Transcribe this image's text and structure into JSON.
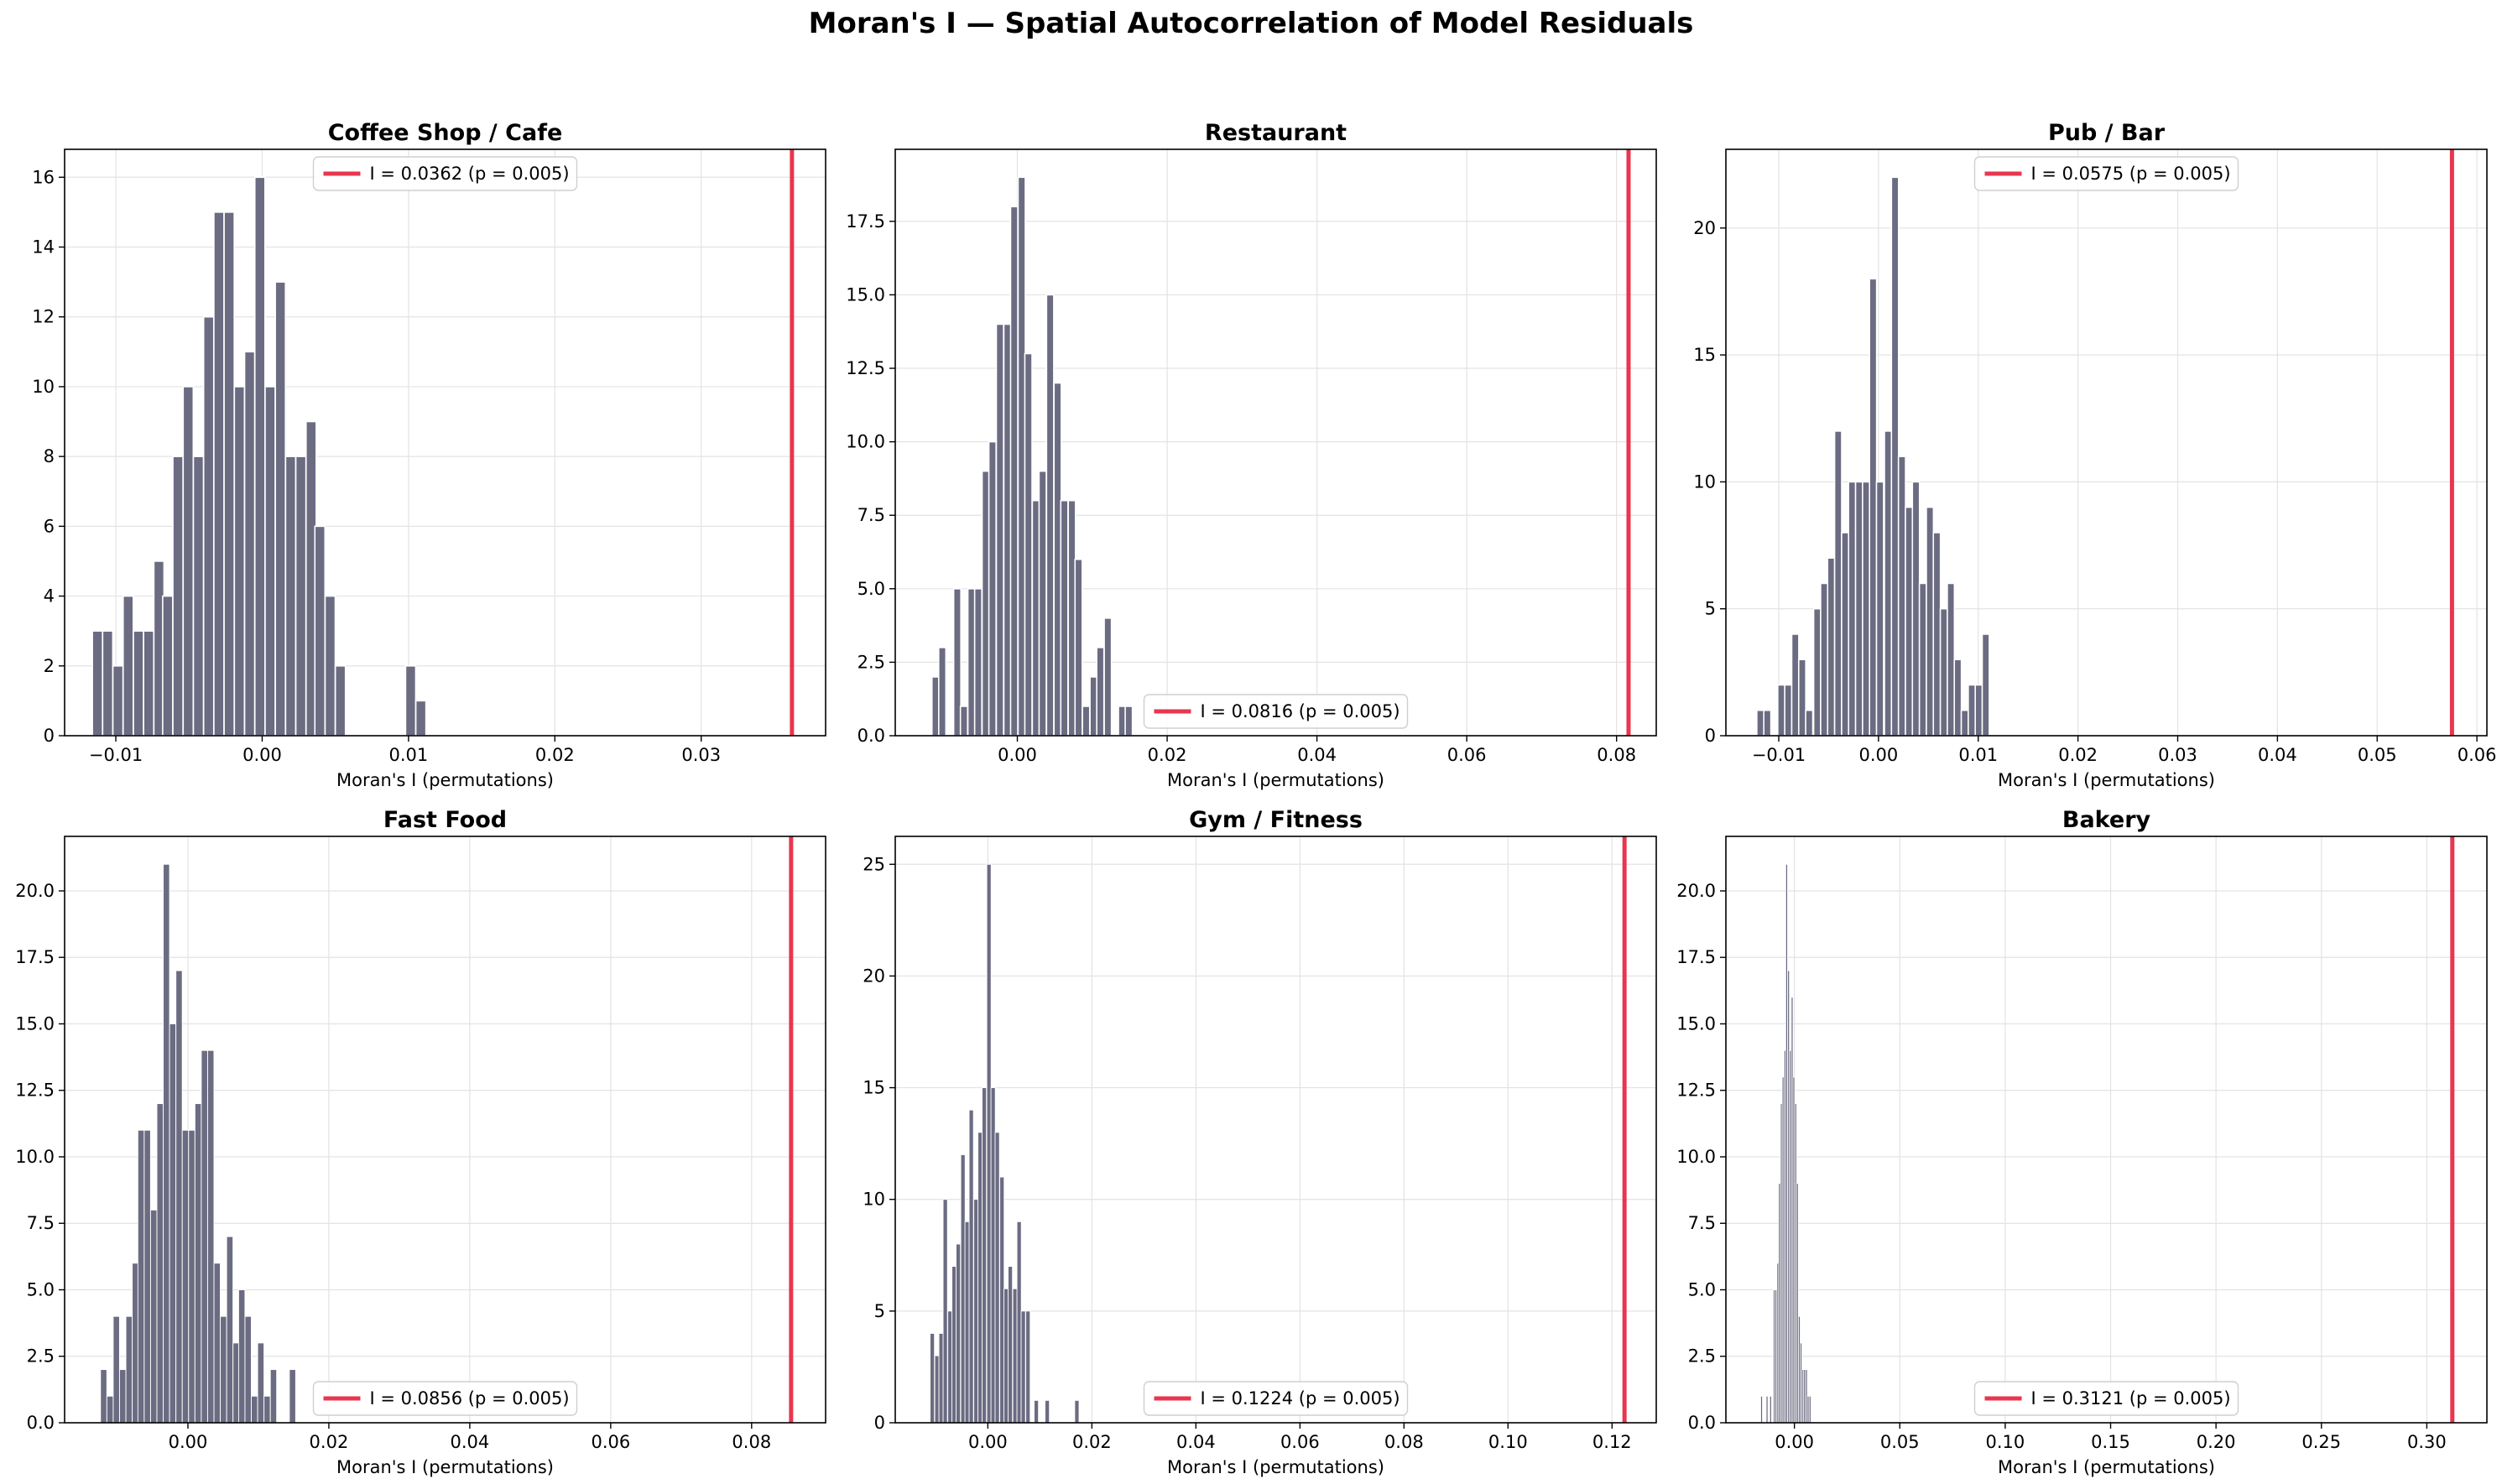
{
  "figure": {
    "title": "Moran's I — Spatial Autocorrelation of Model Residuals",
    "bar_color": "#6b6b82",
    "line_color": "#e8364f"
  },
  "chart_data": [
    {
      "type": "bar",
      "title": "Coffee Shop / Cafe",
      "xlabel": "Moran's I (permutations)",
      "ylabel": "",
      "xlim": [
        -0.0135,
        0.0385
      ],
      "ylim": [
        0,
        16.8
      ],
      "xticks": [
        -0.01,
        0.0,
        0.01,
        0.02,
        0.03
      ],
      "xtick_labels": [
        "−0.01",
        "0.00",
        "0.01",
        "0.02",
        "0.03"
      ],
      "yticks": [
        0,
        2,
        4,
        6,
        8,
        10,
        12,
        14,
        16
      ],
      "ytick_labels": [
        "0",
        "2",
        "4",
        "6",
        "8",
        "10",
        "12",
        "14",
        "16"
      ],
      "bin_width": 0.00069,
      "bins": [
        -0.0116,
        -0.0109,
        -0.0102,
        -0.0095,
        -0.0088,
        -0.0081,
        -0.0074,
        -0.0068,
        -0.0061,
        -0.0054,
        -0.0047,
        -0.004,
        -0.0033,
        -0.0026,
        -0.0019,
        -0.0012,
        -0.0005,
        0.0002,
        0.0009,
        0.0016,
        0.0023,
        0.003,
        0.0036,
        0.0043,
        0.005,
        0.0057,
        0.0064,
        0.0071,
        0.0078,
        0.0085,
        0.0092,
        0.0098,
        0.0105
      ],
      "counts": [
        3,
        3,
        2,
        4,
        3,
        3,
        5,
        4,
        8,
        10,
        8,
        12,
        15,
        15,
        10,
        11,
        16,
        10,
        13,
        8,
        8,
        9,
        6,
        4,
        2,
        0,
        0,
        0,
        0,
        0,
        0,
        2,
        1
      ],
      "observed_I": 0.0362,
      "legend": "I = 0.0362 (p = 0.005)",
      "legend_loc": "upper center",
      "grid": true
    },
    {
      "type": "bar",
      "title": "Restaurant",
      "xlabel": "Moran's I (permutations)",
      "ylabel": "",
      "xlim": [
        -0.0163,
        0.0853
      ],
      "ylim": [
        0,
        19.95
      ],
      "xticks": [
        0.0,
        0.02,
        0.04,
        0.06,
        0.08
      ],
      "xtick_labels": [
        "0.00",
        "0.02",
        "0.04",
        "0.06",
        "0.08"
      ],
      "yticks": [
        0,
        2.5,
        5,
        7.5,
        10,
        12.5,
        15,
        17.5
      ],
      "ytick_labels": [
        "0.0",
        "2.5",
        "5.0",
        "7.5",
        "10.0",
        "12.5",
        "15.0",
        "17.5"
      ],
      "bin_width": 0.00096,
      "bins": [
        -0.0114,
        -0.0105,
        -0.0095,
        -0.0085,
        -0.0076,
        -0.0066,
        -0.0057,
        -0.0047,
        -0.0038,
        -0.0028,
        -0.0018,
        -0.0009,
        0.0001,
        0.001,
        0.002,
        0.0029,
        0.0039,
        0.0049,
        0.0058,
        0.0068,
        0.0077,
        0.0087,
        0.0097,
        0.0106,
        0.0116,
        0.0125,
        0.0135
      ],
      "counts": [
        2,
        3,
        0,
        5,
        1,
        5,
        5,
        9,
        10,
        14,
        14,
        18,
        19,
        13,
        8,
        9,
        15,
        12,
        8,
        8,
        6,
        1,
        2,
        3,
        4,
        0,
        1
      ],
      "extra_bins": [
        {
          "x": 0.0144,
          "count": 1
        }
      ],
      "observed_I": 0.0816,
      "legend": "I = 0.0816 (p = 0.005)",
      "legend_loc": "lower center",
      "grid": true
    },
    {
      "type": "bar",
      "title": "Pub / Bar",
      "xlabel": "Moran's I (permutations)",
      "ylabel": "",
      "xlim": [
        -0.0153,
        0.061
      ],
      "ylim": [
        0,
        23.1
      ],
      "xticks": [
        -0.01,
        0.0,
        0.01,
        0.02,
        0.03,
        0.04,
        0.05,
        0.06
      ],
      "xtick_labels": [
        "−0.01",
        "0.00",
        "0.01",
        "0.02",
        "0.03",
        "0.04",
        "0.05",
        "0.06"
      ],
      "yticks": [
        0,
        5,
        10,
        15,
        20
      ],
      "ytick_labels": [
        "0",
        "5",
        "10",
        "15",
        "20"
      ],
      "bin_width": 0.00071,
      "bins": [
        -0.0122,
        -0.0115,
        -0.0108,
        -0.0101,
        -0.0094,
        -0.0087,
        -0.008,
        -0.0073,
        -0.0065,
        -0.0058,
        -0.0051,
        -0.0044,
        -0.0037,
        -0.003,
        -0.0023,
        -0.0016,
        -0.0009,
        -0.0002,
        0.0006,
        0.0013,
        0.002,
        0.0027,
        0.0034,
        0.0041,
        0.0048,
        0.0055,
        0.0062,
        0.0069,
        0.0076,
        0.0083,
        0.009,
        0.0097,
        0.0104
      ],
      "counts": [
        1,
        1,
        0,
        2,
        2,
        4,
        3,
        1,
        5,
        6,
        7,
        12,
        8,
        10,
        10,
        10,
        18,
        10,
        12,
        22,
        11,
        9,
        10,
        6,
        9,
        8,
        5,
        6,
        3,
        1,
        2,
        2,
        4
      ],
      "observed_I": 0.0575,
      "legend": "I = 0.0575 (p = 0.005)",
      "legend_loc": "upper center",
      "grid": true
    },
    {
      "type": "bar",
      "title": "Fast Food",
      "xlabel": "Moran's I (permutations)",
      "ylabel": "",
      "xlim": [
        -0.0175,
        0.0905
      ],
      "ylim": [
        0,
        22.05
      ],
      "xticks": [
        0.0,
        0.02,
        0.04,
        0.06,
        0.08
      ],
      "xtick_labels": [
        "0.00",
        "0.02",
        "0.04",
        "0.06",
        "0.08"
      ],
      "yticks": [
        0,
        2.5,
        5,
        7.5,
        10,
        12.5,
        15,
        17.5,
        20
      ],
      "ytick_labels": [
        "0.0",
        "2.5",
        "5.0",
        "7.5",
        "10.0",
        "12.5",
        "15.0",
        "17.5",
        "20.0"
      ],
      "bin_width": 0.00089,
      "bins": [
        -0.0124,
        -0.0115,
        -0.0106,
        -0.0097,
        -0.0088,
        -0.0079,
        -0.0071,
        -0.0062,
        -0.0053,
        -0.0044,
        -0.0035,
        -0.0026,
        -0.0017,
        -0.0008,
        0.0001,
        0.001,
        0.0019,
        0.0028,
        0.0037,
        0.0046,
        0.0055,
        0.0064,
        0.0072,
        0.0081,
        0.009,
        0.0099,
        0.0108,
        0.0117,
        0.0126,
        0.0135,
        0.0144
      ],
      "counts": [
        2,
        1,
        4,
        2,
        4,
        6,
        11,
        11,
        8,
        12,
        21,
        15,
        17,
        11,
        11,
        12,
        14,
        14,
        6,
        4,
        7,
        3,
        5,
        4,
        1,
        3,
        1,
        2,
        0,
        0,
        2
      ],
      "observed_I": 0.0856,
      "legend": "I = 0.0856 (p = 0.005)",
      "legend_loc": "lower center",
      "grid": true
    },
    {
      "type": "bar",
      "title": "Gym / Fitness",
      "xlabel": "Moran's I (permutations)",
      "ylabel": "",
      "xlim": [
        -0.0178,
        0.1285
      ],
      "ylim": [
        0,
        26.25
      ],
      "xticks": [
        0.0,
        0.02,
        0.04,
        0.06,
        0.08,
        0.1,
        0.12
      ],
      "xtick_labels": [
        "0.00",
        "0.02",
        "0.04",
        "0.06",
        "0.08",
        "0.10",
        "0.12"
      ],
      "yticks": [
        0,
        5,
        10,
        15,
        20,
        25
      ],
      "ytick_labels": [
        "0",
        "5",
        "10",
        "15",
        "20",
        "25"
      ],
      "bin_width": 0.00083,
      "bins": [
        -0.0111,
        -0.0102,
        -0.0094,
        -0.0086,
        -0.0077,
        -0.0069,
        -0.0061,
        -0.0052,
        -0.0044,
        -0.0036,
        -0.0027,
        -0.0019,
        -0.0011,
        -0.0002,
        0.0006,
        0.0014,
        0.0023,
        0.0031,
        0.0039,
        0.0048,
        0.0056,
        0.0064,
        0.0073,
        0.0081,
        0.0089
      ],
      "counts": [
        4,
        3,
        4,
        10,
        5,
        7,
        8,
        12,
        9,
        14,
        10,
        13,
        15,
        25,
        15,
        13,
        11,
        6,
        7,
        6,
        9,
        5,
        5,
        0,
        1
      ],
      "extra_bins": [
        {
          "x": 0.011,
          "count": 1
        },
        {
          "x": 0.0167,
          "count": 1
        }
      ],
      "observed_I": 0.1224,
      "legend": "I = 0.1224 (p = 0.005)",
      "legend_loc": "lower center",
      "grid": true
    },
    {
      "type": "bar",
      "title": "Bakery",
      "xlabel": "Moran's I (permutations)",
      "ylabel": "",
      "xlim": [
        -0.0325,
        0.3285
      ],
      "ylim": [
        0,
        22.05
      ],
      "xticks": [
        0.0,
        0.05,
        0.1,
        0.15,
        0.2,
        0.25,
        0.3
      ],
      "xtick_labels": [
        "0.00",
        "0.05",
        "0.10",
        "0.15",
        "0.20",
        "0.25",
        "0.30"
      ],
      "yticks": [
        0,
        2.5,
        5,
        7.5,
        10,
        12.5,
        15,
        17.5,
        20
      ],
      "ytick_labels": [
        "0.0",
        "2.5",
        "5.0",
        "7.5",
        "10.0",
        "12.5",
        "15.0",
        "17.5",
        "20.0"
      ],
      "bin_width": 0.00085,
      "bins": [
        -0.016,
        -0.0151,
        -0.0143,
        -0.0134,
        -0.0126,
        -0.0117,
        -0.0109,
        -0.01,
        -0.0092,
        -0.0083,
        -0.0075,
        -0.0066,
        -0.0058,
        -0.0049,
        -0.0041,
        -0.0032,
        -0.0024,
        -0.0015,
        -0.0007,
        0.0002,
        0.001,
        0.0019,
        0.0027,
        0.0036,
        0.0044,
        0.0053,
        0.0061,
        0.007,
        0.0078,
        0.0087,
        0.0095,
        0.0104,
        0.0112,
        0.0121,
        0.0129,
        0.0138,
        0.0146
      ],
      "counts": [
        1,
        0,
        0,
        1,
        0,
        1,
        0,
        5,
        5,
        6,
        9,
        12,
        13,
        14,
        21,
        17,
        14,
        16,
        13,
        12,
        9,
        4,
        3,
        2,
        2,
        2,
        1,
        1,
        0,
        0,
        0,
        0,
        0,
        0,
        0,
        0,
        0
      ],
      "observed_I": 0.3121,
      "legend": "I = 0.3121 (p = 0.005)",
      "legend_loc": "lower center",
      "grid": true
    }
  ]
}
